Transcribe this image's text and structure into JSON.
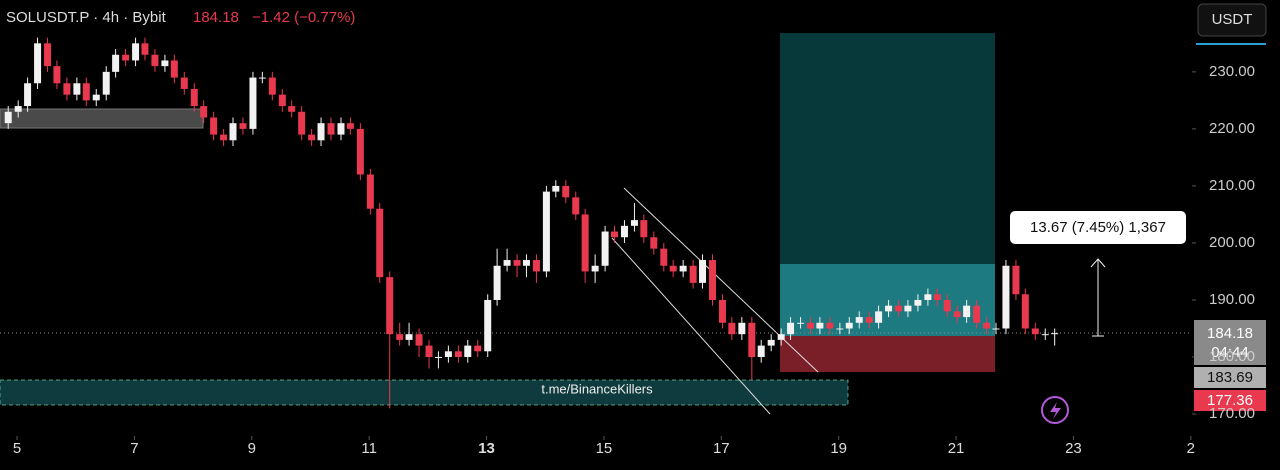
{
  "header": {
    "title": "SOLUSDT.P · 4h · Bybit",
    "price": "184.18",
    "change": "−1.42 (−0.77%)",
    "currency": "USDT"
  },
  "price_tags": {
    "last": "184.18",
    "countdown": "04:44",
    "entry": "183.69",
    "stop": "177.36"
  },
  "annotations": {
    "measure": "13.67 (7.45%) 1,367",
    "watermark": "t.me/BinanceKillers"
  },
  "chart_data": {
    "type": "candlestick",
    "up_color": "#f2f2f2",
    "down_color": "#e8394f",
    "xlim": [
      4.71,
      25.02
    ],
    "ylim": [
      167.2,
      242.6
    ],
    "xticks": [
      5,
      7,
      9,
      11,
      13,
      15,
      17,
      19,
      21,
      23,
      {
        "value": 25,
        "label": "2"
      }
    ],
    "yticks": [
      {
        "value": 170,
        "label": "170.00"
      },
      {
        "value": 180,
        "label": "180.00"
      },
      {
        "value": 190,
        "label": "190.00"
      },
      {
        "value": 200,
        "label": "200.00"
      },
      {
        "value": 210,
        "label": "210.00"
      },
      {
        "value": 220,
        "label": "220.00"
      },
      {
        "value": 230,
        "label": "230.00"
      }
    ],
    "x": [
      4.85,
      5.02,
      5.18,
      5.35,
      5.52,
      5.68,
      5.85,
      6.02,
      6.18,
      6.35,
      6.52,
      6.68,
      6.85,
      7.02,
      7.18,
      7.35,
      7.52,
      7.68,
      7.85,
      8.02,
      8.18,
      8.35,
      8.52,
      8.68,
      8.85,
      9.02,
      9.18,
      9.35,
      9.52,
      9.68,
      9.85,
      10.02,
      10.18,
      10.35,
      10.52,
      10.68,
      10.85,
      11.02,
      11.18,
      11.35,
      11.52,
      11.68,
      11.85,
      12.02,
      12.18,
      12.35,
      12.52,
      12.68,
      12.85,
      13.02,
      13.18,
      13.35,
      13.52,
      13.68,
      13.85,
      14.02,
      14.18,
      14.35,
      14.52,
      14.68,
      14.85,
      15.02,
      15.18,
      15.35,
      15.52,
      15.68,
      15.85,
      16.02,
      16.18,
      16.35,
      16.52,
      16.68,
      16.85,
      17.02,
      17.18,
      17.35,
      17.52,
      17.68,
      17.85,
      18.02,
      18.18,
      18.35,
      18.52,
      18.68,
      18.85,
      19.02,
      19.18,
      19.35,
      19.52,
      19.68,
      19.85,
      20.02,
      20.18,
      20.35,
      20.52,
      20.68,
      20.85,
      21.02,
      21.18,
      21.35,
      21.52,
      21.68,
      21.85,
      22.02,
      22.18,
      22.35,
      22.52,
      22.68
    ],
    "open": [
      221,
      223,
      224,
      228,
      235,
      231,
      228,
      226,
      228,
      225,
      226,
      230,
      233,
      232,
      235,
      233,
      231,
      232,
      229,
      227,
      224,
      222,
      219,
      218,
      221,
      220,
      229,
      229,
      226,
      224,
      223,
      219,
      218,
      221,
      219,
      221,
      220,
      212,
      206,
      194,
      184,
      183,
      184,
      182,
      180,
      180,
      181,
      180,
      182,
      181,
      190,
      196,
      197,
      196,
      197,
      195,
      209,
      210,
      208,
      205,
      195,
      196,
      202,
      201,
      203,
      204,
      201,
      199,
      196,
      195,
      196,
      193,
      197,
      190,
      186,
      184,
      186,
      180,
      182,
      183,
      184,
      186,
      186,
      185,
      186,
      185,
      185,
      186,
      187,
      186,
      188,
      189,
      188,
      189,
      190,
      191,
      190,
      188,
      187,
      189,
      186,
      185,
      185,
      196,
      191,
      185,
      184,
      184
    ],
    "high": [
      224,
      225,
      229,
      236,
      236,
      232,
      229,
      229,
      229,
      227,
      231,
      234,
      234,
      236,
      236,
      234,
      233,
      233,
      230,
      228,
      225,
      223,
      220,
      222,
      222,
      230,
      230,
      230,
      227,
      225,
      224,
      220,
      222,
      222,
      222,
      222,
      221,
      213,
      207,
      195,
      186,
      186,
      185,
      183,
      181,
      182,
      182,
      183,
      183,
      191,
      199,
      199,
      198,
      198,
      198,
      210,
      211,
      211,
      209,
      206,
      198,
      203,
      203,
      204,
      207,
      205,
      202,
      200,
      197,
      197,
      197,
      198,
      198,
      191,
      187,
      187,
      187,
      183,
      184,
      185,
      187,
      187,
      187,
      187,
      187,
      186,
      187,
      188,
      188,
      189,
      190,
      190,
      190,
      191,
      192,
      192,
      191,
      189,
      190,
      190,
      187,
      186,
      197,
      197,
      192,
      186,
      185,
      185
    ],
    "low": [
      220,
      222,
      223,
      227,
      230,
      227,
      225,
      225,
      224,
      224,
      225,
      229,
      231,
      231,
      232,
      230,
      230,
      228,
      226,
      223,
      221,
      218,
      217,
      217,
      219,
      219,
      228,
      225,
      223,
      222,
      218,
      217,
      217,
      218,
      218,
      219,
      211,
      205,
      193,
      171,
      182,
      182,
      180,
      178,
      178,
      179,
      179,
      179,
      180,
      180,
      189,
      195,
      194,
      194,
      193,
      194,
      208,
      207,
      204,
      193,
      193,
      195,
      200,
      200,
      202,
      200,
      198,
      195,
      194,
      194,
      192,
      192,
      189,
      185,
      183,
      183,
      176,
      179,
      181,
      182,
      183,
      185,
      184,
      184,
      184,
      184,
      184,
      185,
      185,
      185,
      187,
      187,
      187,
      188,
      189,
      189,
      187,
      186,
      186,
      185,
      184,
      184,
      184,
      190,
      184,
      183,
      183,
      182
    ],
    "close": [
      223,
      224,
      228,
      235,
      231,
      228,
      226,
      228,
      225,
      226,
      230,
      233,
      232,
      235,
      233,
      231,
      232,
      229,
      227,
      224,
      222,
      219,
      218,
      221,
      220,
      229,
      229,
      226,
      224,
      223,
      219,
      218,
      221,
      219,
      221,
      220,
      212,
      206,
      194,
      184,
      183,
      184,
      182,
      180,
      180,
      181,
      180,
      182,
      181,
      190,
      196,
      197,
      196,
      197,
      195,
      209,
      210,
      208,
      205,
      195,
      196,
      202,
      201,
      203,
      204,
      201,
      199,
      196,
      195,
      196,
      193,
      197,
      190,
      186,
      184,
      186,
      180,
      182,
      183,
      184,
      186,
      186,
      185,
      186,
      185,
      185,
      186,
      187,
      186,
      188,
      189,
      188,
      189,
      190,
      191,
      190,
      188,
      187,
      189,
      186,
      185,
      185,
      196,
      191,
      185,
      184,
      184,
      184.18
    ]
  }
}
